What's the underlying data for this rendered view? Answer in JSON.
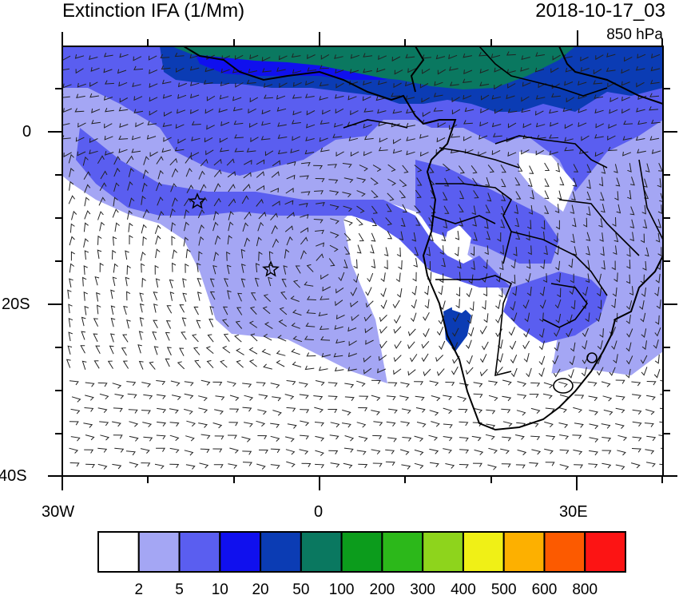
{
  "header": {
    "title": "Extinction IFA (1/Mm)",
    "datetime": "2018-10-17_03",
    "level": "850 hPa"
  },
  "map": {
    "region": "South Atlantic and southern Africa",
    "x_tick_labels": [
      "30W",
      "0",
      "30E"
    ],
    "y_tick_labels": [
      "0",
      "20S",
      "40S"
    ],
    "lon_range": [
      -30,
      40
    ],
    "lat_range": [
      -40,
      10
    ],
    "overlay": "wind barbs",
    "markers": [
      {
        "type": "star",
        "lon": -14.4,
        "lat": -8
      },
      {
        "type": "star",
        "lon": -5.7,
        "lat": -16
      }
    ]
  },
  "colorbar": {
    "labels": [
      "2",
      "5",
      "10",
      "20",
      "50",
      "100",
      "200",
      "300",
      "400",
      "500",
      "600",
      "800"
    ],
    "colors": [
      "#ffffff",
      "#a4a6f4",
      "#5a5ef0",
      "#1010ee",
      "#0b3cb4",
      "#0a7860",
      "#0c9c1c",
      "#2cb81a",
      "#8ed41c",
      "#f0f016",
      "#fdb000",
      "#fc5a00",
      "#fc1414"
    ]
  }
}
